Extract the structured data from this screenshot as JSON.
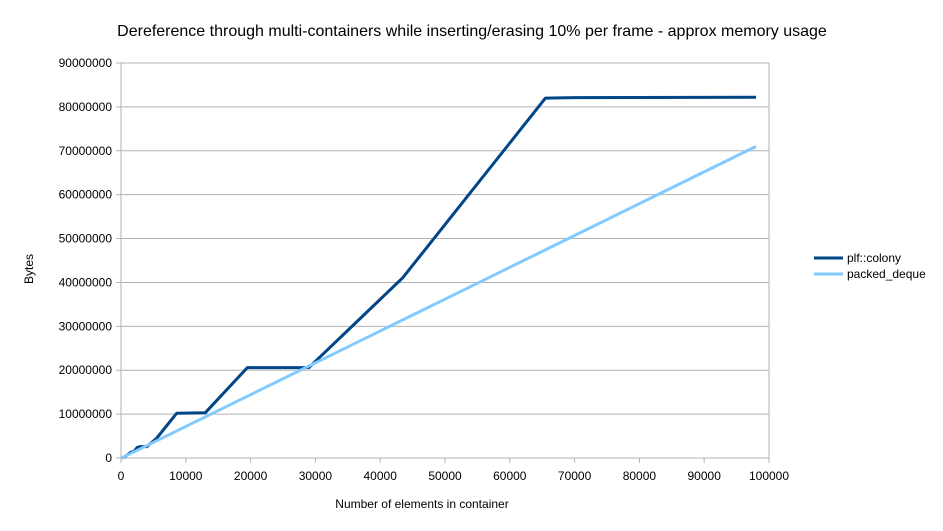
{
  "chart_data": {
    "type": "line",
    "title": "Dereference through multi-containers while inserting/erasing 10% per frame - approx memory usage",
    "xlabel": "Number of elements in container",
    "ylabel": "Bytes",
    "xlim": [
      0,
      100000
    ],
    "ylim": [
      0,
      90000000
    ],
    "x_ticks": [
      0,
      10000,
      20000,
      30000,
      40000,
      50000,
      60000,
      70000,
      80000,
      90000,
      100000
    ],
    "y_ticks": [
      0,
      10000000,
      20000000,
      30000000,
      40000000,
      50000000,
      60000000,
      70000000,
      80000000,
      90000000
    ],
    "grid": true,
    "legend_position": "right",
    "series": [
      {
        "name": "plf::colony",
        "color": "#004586",
        "points": [
          [
            100,
            0
          ],
          [
            500,
            200000
          ],
          [
            1000,
            700000
          ],
          [
            1500,
            1300000
          ],
          [
            2000,
            1500000
          ],
          [
            2500,
            2400000
          ],
          [
            3000,
            2600000
          ],
          [
            4000,
            2600000
          ],
          [
            5500,
            4500000
          ],
          [
            8600,
            10200000
          ],
          [
            13000,
            10300000
          ],
          [
            19500,
            20600000
          ],
          [
            29000,
            20600000
          ],
          [
            43500,
            41100000
          ],
          [
            65500,
            82000000
          ],
          [
            70000,
            82100000
          ],
          [
            98000,
            82200000
          ]
        ]
      },
      {
        "name": "packed_deque",
        "color": "#83caff",
        "points": [
          [
            100,
            0
          ],
          [
            98000,
            71000000
          ]
        ]
      }
    ]
  }
}
